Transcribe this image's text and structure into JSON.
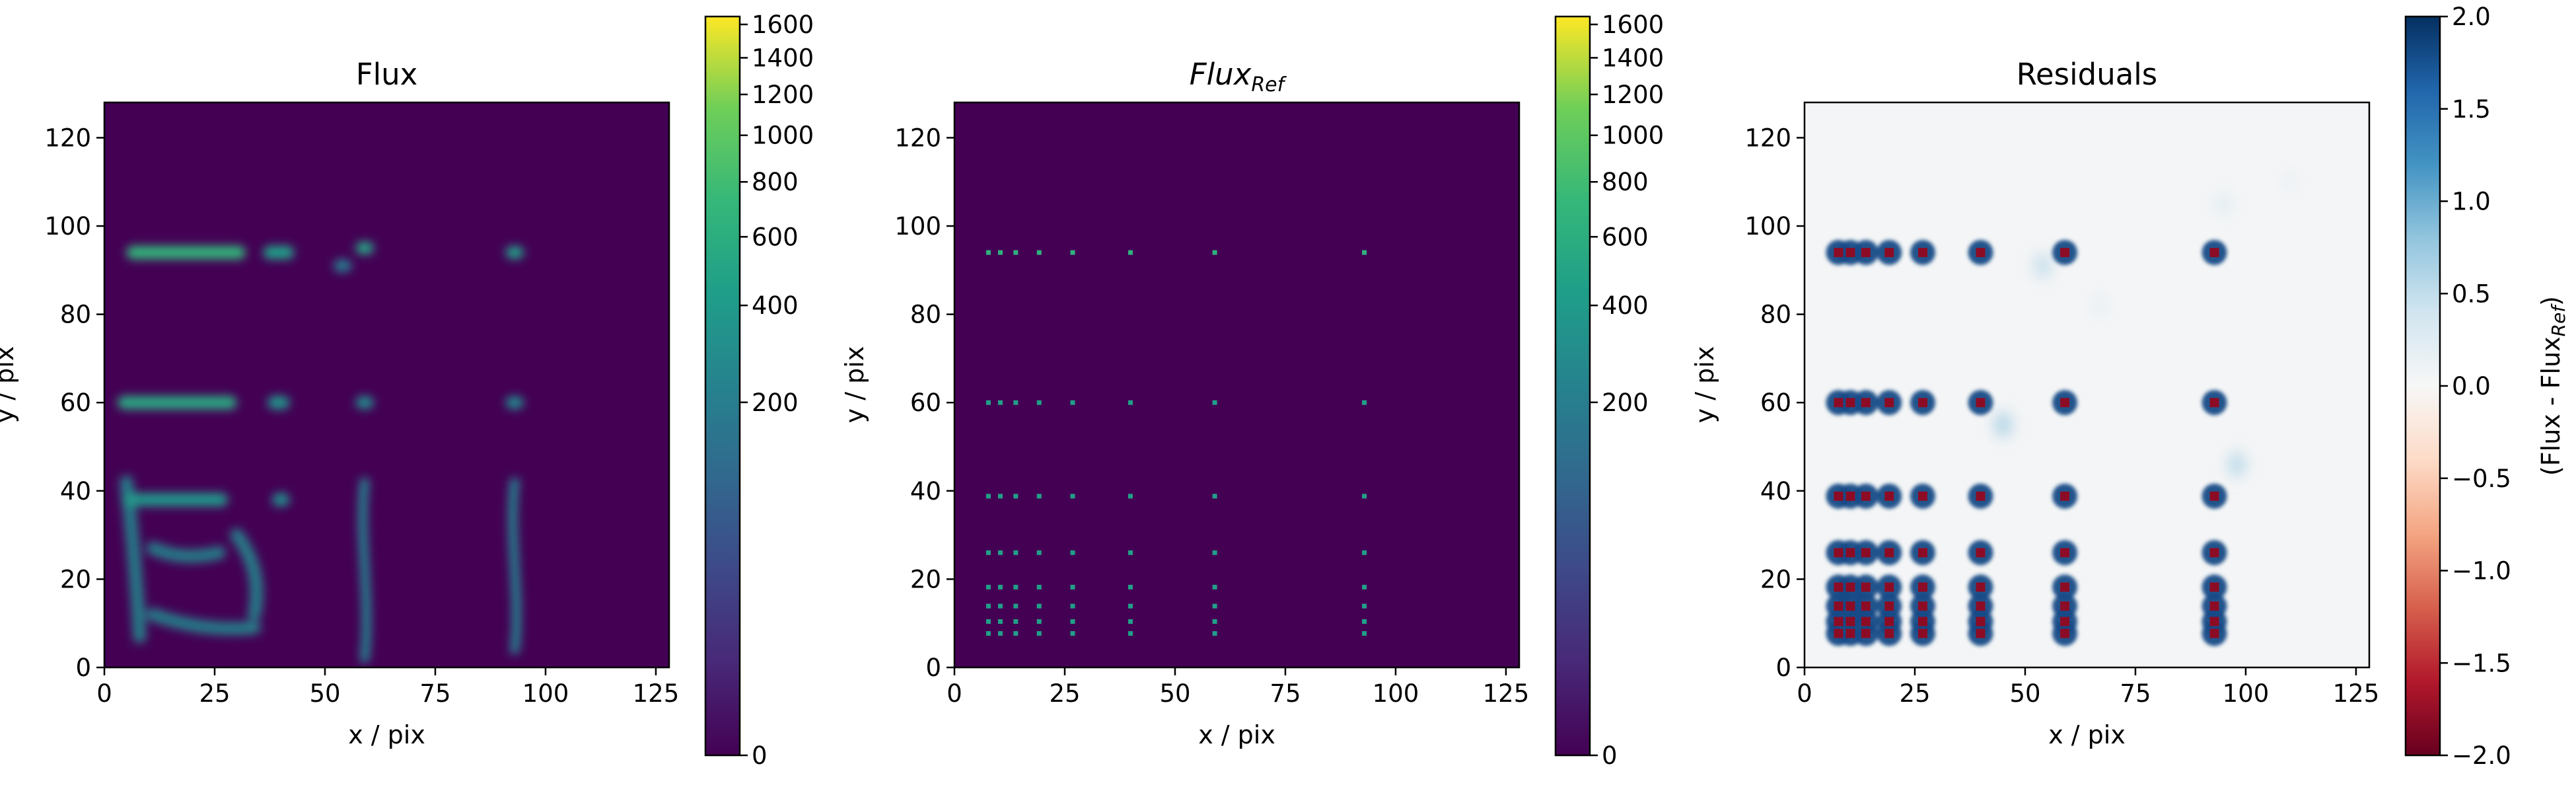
{
  "figure": {
    "panels": [
      {
        "id": "flux",
        "title": "Flux",
        "title_sub": ""
      },
      {
        "id": "flux-ref",
        "title": "Flux",
        "title_sub": "Ref"
      },
      {
        "id": "residuals",
        "title": "Residuals",
        "title_sub": ""
      }
    ],
    "residual_cbar_label": {
      "main": "(Flux - Flux",
      "sub": "Ref",
      "end": ")"
    }
  },
  "colors": {
    "viridis_low": "#440154",
    "viridis_mid": "#21918c",
    "viridis_high": "#fde725",
    "rdbu_low": "#67001f",
    "rdbu_mid": "#f7f7f7",
    "rdbu_high": "#053061"
  },
  "chart_data": [
    {
      "type": "heatmap",
      "title": "Flux",
      "xlabel": "x / pix",
      "ylabel": "y / pix",
      "xlim": [
        0,
        128
      ],
      "ylim": [
        0,
        128
      ],
      "xticks": [
        "0",
        "25",
        "50",
        "75",
        "100",
        "125"
      ],
      "yticks": [
        "0",
        "20",
        "40",
        "60",
        "80",
        "100",
        "120"
      ],
      "colormap": "viridis",
      "color_scale": "power-norm",
      "colorbar": {
        "min": 0,
        "max": 1650,
        "ticks": [
          "0",
          "200",
          "400",
          "600",
          "800",
          "1000",
          "1200",
          "1400",
          "1600"
        ]
      },
      "features": {
        "row_bands": [
          {
            "y": 94,
            "x": [
              5,
              32
            ],
            "level": 700
          },
          {
            "y": 94,
            "x": [
              36,
              43
            ],
            "level": 450
          },
          {
            "y": 60,
            "x": [
              3,
              30
            ],
            "level": 550
          },
          {
            "y": 60,
            "x": [
              37,
              42
            ],
            "level": 350
          },
          {
            "y": 38,
            "x": [
              4,
              28
            ],
            "level": 380
          },
          {
            "y": 38,
            "x": [
              38,
              42
            ],
            "level": 300
          }
        ],
        "blobs": [
          {
            "x": 59,
            "y": 95,
            "level": 500
          },
          {
            "x": 93,
            "y": 94,
            "level": 450
          },
          {
            "x": 59,
            "y": 60,
            "level": 300
          },
          {
            "x": 93,
            "y": 60,
            "level": 280
          },
          {
            "x": 54,
            "y": 91,
            "level": 200
          }
        ],
        "column_bands": [
          {
            "x": 59,
            "y": [
              2,
              42
            ],
            "level": 230
          },
          {
            "x": 93,
            "y": [
              4,
              42
            ],
            "level": 230
          }
        ],
        "ring": {
          "x": [
            5,
            40
          ],
          "y": [
            7,
            42
          ],
          "level": 260
        }
      }
    },
    {
      "type": "heatmap",
      "title": "Flux_Ref",
      "xlabel": "x / pix",
      "ylabel": "y / pix",
      "xlim": [
        0,
        128
      ],
      "ylim": [
        0,
        128
      ],
      "xticks": [
        "0",
        "25",
        "50",
        "75",
        "100",
        "125"
      ],
      "yticks": [
        "0",
        "20",
        "40",
        "60",
        "80",
        "100",
        "120"
      ],
      "colormap": "viridis",
      "color_scale": "power-norm",
      "colorbar": {
        "min": 0,
        "max": 1650,
        "ticks": [
          "0",
          "200",
          "400",
          "600",
          "800",
          "1000",
          "1200",
          "1400",
          "1600"
        ]
      },
      "point_sources": {
        "x": [
          7.7,
          10.4,
          13.9,
          19.2,
          26.8,
          39.9,
          59.0,
          92.9
        ],
        "y": [
          7.7,
          10.4,
          13.9,
          18.2,
          26.0,
          38.8,
          60.0,
          94.0
        ],
        "top_row_level": 650,
        "other_level": 450
      }
    },
    {
      "type": "heatmap",
      "title": "Residuals",
      "xlabel": "x / pix",
      "ylabel": "y / pix",
      "xlim": [
        0,
        128
      ],
      "ylim": [
        0,
        128
      ],
      "xticks": [
        "0",
        "25",
        "50",
        "75",
        "100",
        "125"
      ],
      "yticks": [
        "0",
        "20",
        "40",
        "60",
        "80",
        "100",
        "120"
      ],
      "colormap": "RdBu",
      "colorbar": {
        "min": -2.0,
        "max": 2.0,
        "ticks": [
          "−2.0",
          "−1.5",
          "−1.0",
          "−0.5",
          "0.0",
          "0.5",
          "1.0",
          "1.5",
          "2.0"
        ]
      },
      "features": {
        "positive_halo": 1.8,
        "negative_cores": -1.8,
        "faint_streaks": [
          {
            "x": 54,
            "y": 91,
            "value": 0.6
          },
          {
            "x": 67,
            "y": 82,
            "value": 0.2
          },
          {
            "x": 45,
            "y": 55,
            "value": 0.8
          },
          {
            "x": 98,
            "y": 46,
            "value": 0.7
          },
          {
            "x": 95,
            "y": 105,
            "value": 0.3
          },
          {
            "x": 110,
            "y": 110,
            "value": 0.15
          }
        ]
      }
    }
  ]
}
